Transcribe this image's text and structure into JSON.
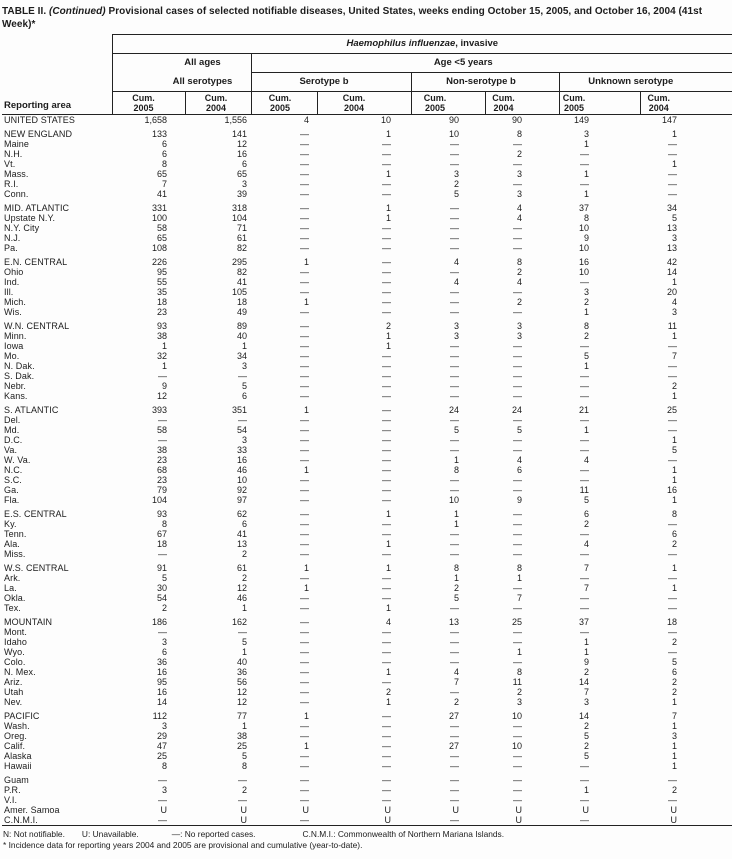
{
  "title": {
    "table_label": "TABLE II.",
    "continued": "(Continued)",
    "rest": "Provisional cases of selected notifiable diseases, United States, weeks ending October 15, 2005, and October 16, 2004 (41st Week)*"
  },
  "header": {
    "reporting_area": "Reporting area",
    "disease_name": "Haemophilus influenzae",
    "disease_suffix": ", invasive",
    "all_ages": "All ages",
    "age_under5": "Age <5 years",
    "all_serotypes": "All serotypes",
    "serotype_b": "Serotype b",
    "non_serotype_b": "Non-serotype b",
    "unknown_serotype": "Unknown serotype",
    "columns": [
      {
        "cum": "Cum.",
        "year": "2005"
      },
      {
        "cum": "Cum.",
        "year": "2004"
      },
      {
        "cum": "Cum.",
        "year": "2005"
      },
      {
        "cum": "Cum.",
        "year": "2004"
      },
      {
        "cum": "Cum.",
        "year": "2005"
      },
      {
        "cum": "Cum.",
        "year": "2004"
      },
      {
        "cum": "Cum.",
        "year": "2005"
      },
      {
        "cum": "Cum.",
        "year": "2004"
      }
    ]
  },
  "sections": [
    [
      {
        "area": "UNITED STATES",
        "v": [
          "1,658",
          "1,556",
          "4",
          "10",
          "90",
          "90",
          "149",
          "147"
        ]
      }
    ],
    [
      {
        "area": "NEW ENGLAND",
        "v": [
          "133",
          "141",
          "—",
          "1",
          "10",
          "8",
          "3",
          "1"
        ]
      },
      {
        "area": "Maine",
        "v": [
          "6",
          "12",
          "—",
          "—",
          "—",
          "—",
          "1",
          "—"
        ]
      },
      {
        "area": "N.H.",
        "v": [
          "6",
          "16",
          "—",
          "—",
          "—",
          "2",
          "—",
          "—"
        ]
      },
      {
        "area": "Vt.",
        "v": [
          "8",
          "6",
          "—",
          "—",
          "—",
          "—",
          "—",
          "1"
        ]
      },
      {
        "area": "Mass.",
        "v": [
          "65",
          "65",
          "—",
          "1",
          "3",
          "3",
          "1",
          "—"
        ]
      },
      {
        "area": "R.I.",
        "v": [
          "7",
          "3",
          "—",
          "—",
          "2",
          "—",
          "—",
          "—"
        ]
      },
      {
        "area": "Conn.",
        "v": [
          "41",
          "39",
          "—",
          "—",
          "5",
          "3",
          "1",
          "—"
        ]
      }
    ],
    [
      {
        "area": "MID. ATLANTIC",
        "v": [
          "331",
          "318",
          "—",
          "1",
          "—",
          "4",
          "37",
          "34"
        ]
      },
      {
        "area": "Upstate N.Y.",
        "v": [
          "100",
          "104",
          "—",
          "1",
          "—",
          "4",
          "8",
          "5"
        ]
      },
      {
        "area": "N.Y. City",
        "v": [
          "58",
          "71",
          "—",
          "—",
          "—",
          "—",
          "10",
          "13"
        ]
      },
      {
        "area": "N.J.",
        "v": [
          "65",
          "61",
          "—",
          "—",
          "—",
          "—",
          "9",
          "3"
        ]
      },
      {
        "area": "Pa.",
        "v": [
          "108",
          "82",
          "—",
          "—",
          "—",
          "—",
          "10",
          "13"
        ]
      }
    ],
    [
      {
        "area": "E.N. CENTRAL",
        "v": [
          "226",
          "295",
          "1",
          "—",
          "4",
          "8",
          "16",
          "42"
        ]
      },
      {
        "area": "Ohio",
        "v": [
          "95",
          "82",
          "—",
          "—",
          "—",
          "2",
          "10",
          "14"
        ]
      },
      {
        "area": "Ind.",
        "v": [
          "55",
          "41",
          "—",
          "—",
          "4",
          "4",
          "—",
          "1"
        ]
      },
      {
        "area": "Ill.",
        "v": [
          "35",
          "105",
          "—",
          "—",
          "—",
          "—",
          "3",
          "20"
        ]
      },
      {
        "area": "Mich.",
        "v": [
          "18",
          "18",
          "1",
          "—",
          "—",
          "2",
          "2",
          "4"
        ]
      },
      {
        "area": "Wis.",
        "v": [
          "23",
          "49",
          "—",
          "—",
          "—",
          "—",
          "1",
          "3"
        ]
      }
    ],
    [
      {
        "area": "W.N. CENTRAL",
        "v": [
          "93",
          "89",
          "—",
          "2",
          "3",
          "3",
          "8",
          "11"
        ]
      },
      {
        "area": "Minn.",
        "v": [
          "38",
          "40",
          "—",
          "1",
          "3",
          "3",
          "2",
          "1"
        ]
      },
      {
        "area": "Iowa",
        "v": [
          "1",
          "1",
          "—",
          "1",
          "—",
          "—",
          "—",
          "—"
        ]
      },
      {
        "area": "Mo.",
        "v": [
          "32",
          "34",
          "—",
          "—",
          "—",
          "—",
          "5",
          "7"
        ]
      },
      {
        "area": "N. Dak.",
        "v": [
          "1",
          "3",
          "—",
          "—",
          "—",
          "—",
          "1",
          "—"
        ]
      },
      {
        "area": "S. Dak.",
        "v": [
          "—",
          "—",
          "—",
          "—",
          "—",
          "—",
          "—",
          "—"
        ]
      },
      {
        "area": "Nebr.",
        "v": [
          "9",
          "5",
          "—",
          "—",
          "—",
          "—",
          "—",
          "2"
        ]
      },
      {
        "area": "Kans.",
        "v": [
          "12",
          "6",
          "—",
          "—",
          "—",
          "—",
          "—",
          "1"
        ]
      }
    ],
    [
      {
        "area": "S. ATLANTIC",
        "v": [
          "393",
          "351",
          "1",
          "—",
          "24",
          "24",
          "21",
          "25"
        ]
      },
      {
        "area": "Del.",
        "v": [
          "—",
          "—",
          "—",
          "—",
          "—",
          "—",
          "—",
          "—"
        ]
      },
      {
        "area": "Md.",
        "v": [
          "58",
          "54",
          "—",
          "—",
          "5",
          "5",
          "1",
          "—"
        ]
      },
      {
        "area": "D.C.",
        "v": [
          "—",
          "3",
          "—",
          "—",
          "—",
          "—",
          "—",
          "1"
        ]
      },
      {
        "area": "Va.",
        "v": [
          "38",
          "33",
          "—",
          "—",
          "—",
          "—",
          "—",
          "5"
        ]
      },
      {
        "area": "W. Va.",
        "v": [
          "23",
          "16",
          "—",
          "—",
          "1",
          "4",
          "4",
          "—"
        ]
      },
      {
        "area": "N.C.",
        "v": [
          "68",
          "46",
          "1",
          "—",
          "8",
          "6",
          "—",
          "1"
        ]
      },
      {
        "area": "S.C.",
        "v": [
          "23",
          "10",
          "—",
          "—",
          "—",
          "—",
          "—",
          "1"
        ]
      },
      {
        "area": "Ga.",
        "v": [
          "79",
          "92",
          "—",
          "—",
          "—",
          "—",
          "11",
          "16"
        ]
      },
      {
        "area": "Fla.",
        "v": [
          "104",
          "97",
          "—",
          "—",
          "10",
          "9",
          "5",
          "1"
        ]
      }
    ],
    [
      {
        "area": "E.S. CENTRAL",
        "v": [
          "93",
          "62",
          "—",
          "1",
          "1",
          "—",
          "6",
          "8"
        ]
      },
      {
        "area": "Ky.",
        "v": [
          "8",
          "6",
          "—",
          "—",
          "1",
          "—",
          "2",
          "—"
        ]
      },
      {
        "area": "Tenn.",
        "v": [
          "67",
          "41",
          "—",
          "—",
          "—",
          "—",
          "—",
          "6"
        ]
      },
      {
        "area": "Ala.",
        "v": [
          "18",
          "13",
          "—",
          "1",
          "—",
          "—",
          "4",
          "2"
        ]
      },
      {
        "area": "Miss.",
        "v": [
          "—",
          "2",
          "—",
          "—",
          "—",
          "—",
          "—",
          "—"
        ]
      }
    ],
    [
      {
        "area": "W.S. CENTRAL",
        "v": [
          "91",
          "61",
          "1",
          "1",
          "8",
          "8",
          "7",
          "1"
        ]
      },
      {
        "area": "Ark.",
        "v": [
          "5",
          "2",
          "—",
          "—",
          "1",
          "1",
          "—",
          "—"
        ]
      },
      {
        "area": "La.",
        "v": [
          "30",
          "12",
          "1",
          "—",
          "2",
          "—",
          "7",
          "1"
        ]
      },
      {
        "area": "Okla.",
        "v": [
          "54",
          "46",
          "—",
          "—",
          "5",
          "7",
          "—",
          "—"
        ]
      },
      {
        "area": "Tex.",
        "v": [
          "2",
          "1",
          "—",
          "1",
          "—",
          "—",
          "—",
          "—"
        ]
      }
    ],
    [
      {
        "area": "MOUNTAIN",
        "v": [
          "186",
          "162",
          "—",
          "4",
          "13",
          "25",
          "37",
          "18"
        ]
      },
      {
        "area": "Mont.",
        "v": [
          "—",
          "—",
          "—",
          "—",
          "—",
          "—",
          "—",
          "—"
        ]
      },
      {
        "area": "Idaho",
        "v": [
          "3",
          "5",
          "—",
          "—",
          "—",
          "—",
          "1",
          "2"
        ]
      },
      {
        "area": "Wyo.",
        "v": [
          "6",
          "1",
          "—",
          "—",
          "—",
          "1",
          "1",
          "—"
        ]
      },
      {
        "area": "Colo.",
        "v": [
          "36",
          "40",
          "—",
          "—",
          "—",
          "—",
          "9",
          "5"
        ]
      },
      {
        "area": "N. Mex.",
        "v": [
          "16",
          "36",
          "—",
          "1",
          "4",
          "8",
          "2",
          "6"
        ]
      },
      {
        "area": "Ariz.",
        "v": [
          "95",
          "56",
          "—",
          "—",
          "7",
          "11",
          "14",
          "2"
        ]
      },
      {
        "area": "Utah",
        "v": [
          "16",
          "12",
          "—",
          "2",
          "—",
          "2",
          "7",
          "2"
        ]
      },
      {
        "area": "Nev.",
        "v": [
          "14",
          "12",
          "—",
          "1",
          "2",
          "3",
          "3",
          "1"
        ]
      }
    ],
    [
      {
        "area": "PACIFIC",
        "v": [
          "112",
          "77",
          "1",
          "—",
          "27",
          "10",
          "14",
          "7"
        ]
      },
      {
        "area": "Wash.",
        "v": [
          "3",
          "1",
          "—",
          "—",
          "—",
          "—",
          "2",
          "1"
        ]
      },
      {
        "area": "Oreg.",
        "v": [
          "29",
          "38",
          "—",
          "—",
          "—",
          "—",
          "5",
          "3"
        ]
      },
      {
        "area": "Calif.",
        "v": [
          "47",
          "25",
          "1",
          "—",
          "27",
          "10",
          "2",
          "1"
        ]
      },
      {
        "area": "Alaska",
        "v": [
          "25",
          "5",
          "—",
          "—",
          "—",
          "—",
          "5",
          "1"
        ]
      },
      {
        "area": "Hawaii",
        "v": [
          "8",
          "8",
          "—",
          "—",
          "—",
          "—",
          "—",
          "1"
        ]
      }
    ],
    [
      {
        "area": "Guam",
        "v": [
          "—",
          "—",
          "—",
          "—",
          "—",
          "—",
          "—",
          "—"
        ]
      },
      {
        "area": "P.R.",
        "v": [
          "3",
          "2",
          "—",
          "—",
          "—",
          "—",
          "1",
          "2"
        ]
      },
      {
        "area": "V.I.",
        "v": [
          "—",
          "—",
          "—",
          "—",
          "—",
          "—",
          "—",
          "—"
        ]
      },
      {
        "area": "Amer. Samoa",
        "v": [
          "U",
          "U",
          "U",
          "U",
          "U",
          "U",
          "U",
          "U"
        ]
      },
      {
        "area": "C.N.M.I.",
        "v": [
          "—",
          "U",
          "—",
          "U",
          "—",
          "U",
          "—",
          "U"
        ]
      }
    ]
  ],
  "footnotes": {
    "n": "N: Not notifiable.",
    "u": "U: Unavailable.",
    "dash": "—: No reported cases.",
    "cnmi": "C.N.M.I.: Commonwealth of Northern Mariana Islands.",
    "star": "* Incidence data for reporting years 2004 and 2005 are provisional and cumulative (year-to-date)."
  }
}
